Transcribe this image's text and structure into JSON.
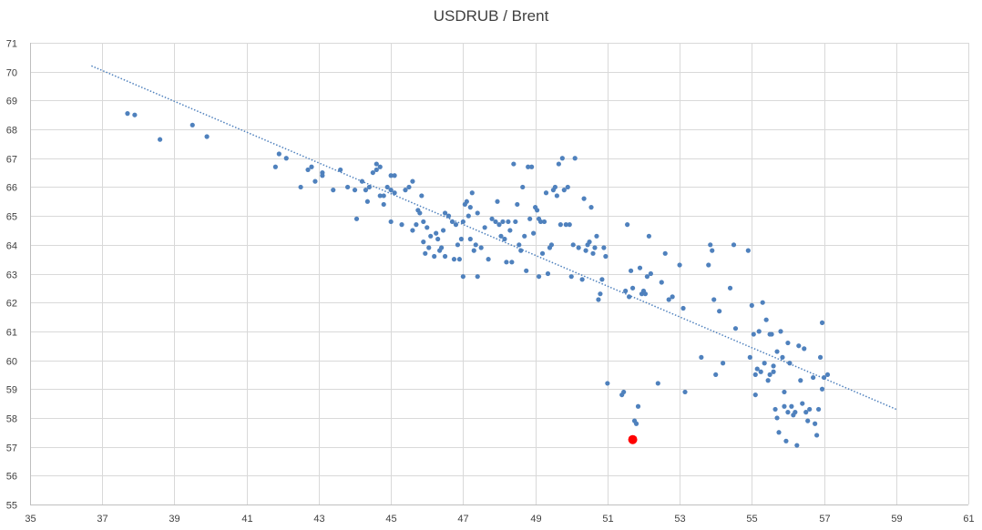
{
  "chart_data": {
    "type": "scatter",
    "title": "USDRUB / Brent",
    "xlabel": "",
    "ylabel": "",
    "xlim": [
      35,
      61
    ],
    "ylim": [
      55,
      71
    ],
    "x_ticks": [
      35,
      37,
      39,
      41,
      43,
      45,
      47,
      49,
      51,
      53,
      55,
      57,
      59,
      61
    ],
    "y_ticks": [
      55,
      56,
      57,
      58,
      59,
      60,
      61,
      62,
      63,
      64,
      65,
      66,
      67,
      68,
      69,
      70,
      71
    ],
    "grid": true,
    "colors": {
      "points": "#4f81bd",
      "highlight": "#ff0000",
      "trendline": "#4f81bd"
    },
    "trendline": {
      "style": "dotted",
      "x": [
        36.7,
        59.0
      ],
      "y": [
        70.2,
        58.3
      ]
    },
    "highlight_point": {
      "x": 51.7,
      "y": 57.25
    },
    "series": [
      {
        "points": [
          [
            37.7,
            68.55
          ],
          [
            37.9,
            68.5
          ],
          [
            38.6,
            67.65
          ],
          [
            39.5,
            68.15
          ],
          [
            39.9,
            67.75
          ],
          [
            41.8,
            66.7
          ],
          [
            41.9,
            67.15
          ],
          [
            42.1,
            67.0
          ],
          [
            42.5,
            66.0
          ],
          [
            42.7,
            66.6
          ],
          [
            42.8,
            66.7
          ],
          [
            42.9,
            66.2
          ],
          [
            43.1,
            66.5
          ],
          [
            43.1,
            66.4
          ],
          [
            43.4,
            65.9
          ],
          [
            43.6,
            66.6
          ],
          [
            43.8,
            66.0
          ],
          [
            44.0,
            65.9
          ],
          [
            44.05,
            64.9
          ],
          [
            44.2,
            66.2
          ],
          [
            44.3,
            65.9
          ],
          [
            44.35,
            65.5
          ],
          [
            44.4,
            66.0
          ],
          [
            44.5,
            66.5
          ],
          [
            44.6,
            66.8
          ],
          [
            44.6,
            66.6
          ],
          [
            44.7,
            66.7
          ],
          [
            44.7,
            65.7
          ],
          [
            44.8,
            65.7
          ],
          [
            44.8,
            65.4
          ],
          [
            44.9,
            66.0
          ],
          [
            45.0,
            65.9
          ],
          [
            45.0,
            66.4
          ],
          [
            45.1,
            66.4
          ],
          [
            45.1,
            65.8
          ],
          [
            45.0,
            64.8
          ],
          [
            45.3,
            64.7
          ],
          [
            45.4,
            65.9
          ],
          [
            45.5,
            66.0
          ],
          [
            45.6,
            66.2
          ],
          [
            45.6,
            64.5
          ],
          [
            45.7,
            64.7
          ],
          [
            45.75,
            65.2
          ],
          [
            45.8,
            65.1
          ],
          [
            45.85,
            65.7
          ],
          [
            45.9,
            64.8
          ],
          [
            45.9,
            64.1
          ],
          [
            45.95,
            63.7
          ],
          [
            46.0,
            64.6
          ],
          [
            46.05,
            63.9
          ],
          [
            46.1,
            64.3
          ],
          [
            46.2,
            63.6
          ],
          [
            46.25,
            64.4
          ],
          [
            46.3,
            64.2
          ],
          [
            46.35,
            63.8
          ],
          [
            46.4,
            63.9
          ],
          [
            46.45,
            64.5
          ],
          [
            46.5,
            63.6
          ],
          [
            46.5,
            65.1
          ],
          [
            46.6,
            65.0
          ],
          [
            46.7,
            64.8
          ],
          [
            46.75,
            63.5
          ],
          [
            46.8,
            64.7
          ],
          [
            46.85,
            64.0
          ],
          [
            46.9,
            63.5
          ],
          [
            46.95,
            64.2
          ],
          [
            47.0,
            64.8
          ],
          [
            47.0,
            62.9
          ],
          [
            47.05,
            65.4
          ],
          [
            47.1,
            65.5
          ],
          [
            47.15,
            65.0
          ],
          [
            47.2,
            65.3
          ],
          [
            47.2,
            64.2
          ],
          [
            47.25,
            65.8
          ],
          [
            47.3,
            63.8
          ],
          [
            47.35,
            64.0
          ],
          [
            47.4,
            65.1
          ],
          [
            47.4,
            62.9
          ],
          [
            47.5,
            63.9
          ],
          [
            47.6,
            64.6
          ],
          [
            47.7,
            63.5
          ],
          [
            47.8,
            64.9
          ],
          [
            47.9,
            64.8
          ],
          [
            47.95,
            65.5
          ],
          [
            48.0,
            64.7
          ],
          [
            48.05,
            64.3
          ],
          [
            48.1,
            64.8
          ],
          [
            48.15,
            64.2
          ],
          [
            48.2,
            63.4
          ],
          [
            48.25,
            64.8
          ],
          [
            48.3,
            64.5
          ],
          [
            48.35,
            63.4
          ],
          [
            48.4,
            66.8
          ],
          [
            48.45,
            64.8
          ],
          [
            48.5,
            65.4
          ],
          [
            48.55,
            64.0
          ],
          [
            48.6,
            63.8
          ],
          [
            48.65,
            66.0
          ],
          [
            48.7,
            64.3
          ],
          [
            48.75,
            63.1
          ],
          [
            48.8,
            66.7
          ],
          [
            48.85,
            64.9
          ],
          [
            48.9,
            66.7
          ],
          [
            48.95,
            64.4
          ],
          [
            49.0,
            65.3
          ],
          [
            49.05,
            65.2
          ],
          [
            49.1,
            64.9
          ],
          [
            49.15,
            64.8
          ],
          [
            49.2,
            63.7
          ],
          [
            49.25,
            64.8
          ],
          [
            49.3,
            65.8
          ],
          [
            49.35,
            63.0
          ],
          [
            49.4,
            63.9
          ],
          [
            49.45,
            64.0
          ],
          [
            49.1,
            62.9
          ],
          [
            49.5,
            65.9
          ],
          [
            49.55,
            66.0
          ],
          [
            49.6,
            65.7
          ],
          [
            49.65,
            66.8
          ],
          [
            49.7,
            64.7
          ],
          [
            49.75,
            67.0
          ],
          [
            49.8,
            65.9
          ],
          [
            49.85,
            64.7
          ],
          [
            49.9,
            66.0
          ],
          [
            49.95,
            64.7
          ],
          [
            50.0,
            62.9
          ],
          [
            50.05,
            64.0
          ],
          [
            50.1,
            67.0
          ],
          [
            50.2,
            63.9
          ],
          [
            50.3,
            62.8
          ],
          [
            50.35,
            65.6
          ],
          [
            50.4,
            63.8
          ],
          [
            50.45,
            64.0
          ],
          [
            50.5,
            64.1
          ],
          [
            50.55,
            65.3
          ],
          [
            50.6,
            63.7
          ],
          [
            50.65,
            63.9
          ],
          [
            50.7,
            64.3
          ],
          [
            50.75,
            62.1
          ],
          [
            50.8,
            62.3
          ],
          [
            50.85,
            62.8
          ],
          [
            50.9,
            63.9
          ],
          [
            50.95,
            63.6
          ],
          [
            51.0,
            59.2
          ],
          [
            51.4,
            58.8
          ],
          [
            51.45,
            58.9
          ],
          [
            51.5,
            62.4
          ],
          [
            51.55,
            64.7
          ],
          [
            51.6,
            62.2
          ],
          [
            51.65,
            63.1
          ],
          [
            51.7,
            62.5
          ],
          [
            51.75,
            57.9
          ],
          [
            51.8,
            57.8
          ],
          [
            51.85,
            58.4
          ],
          [
            51.9,
            63.2
          ],
          [
            51.95,
            62.3
          ],
          [
            52.0,
            62.4
          ],
          [
            52.05,
            62.3
          ],
          [
            52.1,
            62.9
          ],
          [
            52.15,
            64.3
          ],
          [
            52.2,
            63.0
          ],
          [
            52.4,
            59.2
          ],
          [
            52.5,
            62.7
          ],
          [
            52.6,
            63.7
          ],
          [
            52.7,
            62.1
          ],
          [
            52.8,
            62.2
          ],
          [
            53.0,
            63.3
          ],
          [
            53.1,
            61.8
          ],
          [
            53.15,
            58.9
          ],
          [
            53.6,
            60.1
          ],
          [
            53.8,
            63.3
          ],
          [
            53.85,
            64.0
          ],
          [
            53.9,
            63.8
          ],
          [
            53.95,
            62.1
          ],
          [
            54.0,
            59.5
          ],
          [
            54.1,
            61.7
          ],
          [
            54.2,
            59.9
          ],
          [
            54.4,
            62.5
          ],
          [
            54.5,
            64.0
          ],
          [
            54.55,
            61.1
          ],
          [
            54.9,
            63.8
          ],
          [
            54.95,
            60.1
          ],
          [
            55.0,
            61.9
          ],
          [
            55.05,
            60.9
          ],
          [
            55.1,
            59.5
          ],
          [
            55.1,
            58.8
          ],
          [
            55.15,
            59.7
          ],
          [
            55.2,
            61.0
          ],
          [
            55.25,
            59.6
          ],
          [
            55.3,
            62.0
          ],
          [
            55.35,
            59.9
          ],
          [
            55.4,
            61.4
          ],
          [
            55.45,
            59.3
          ],
          [
            55.5,
            59.5
          ],
          [
            55.55,
            60.9
          ],
          [
            55.6,
            59.8
          ],
          [
            55.65,
            58.3
          ],
          [
            55.7,
            58.0
          ],
          [
            55.75,
            57.5
          ],
          [
            55.8,
            61.0
          ],
          [
            55.85,
            60.1
          ],
          [
            55.9,
            58.9
          ],
          [
            55.95,
            57.2
          ],
          [
            56.0,
            60.6
          ],
          [
            56.05,
            59.9
          ],
          [
            56.1,
            58.4
          ],
          [
            56.15,
            58.1
          ],
          [
            56.2,
            58.2
          ],
          [
            56.25,
            57.05
          ],
          [
            56.3,
            60.5
          ],
          [
            56.35,
            59.3
          ],
          [
            56.4,
            58.5
          ],
          [
            56.45,
            60.4
          ],
          [
            56.5,
            58.2
          ],
          [
            56.55,
            57.9
          ],
          [
            56.6,
            58.3
          ],
          [
            56.7,
            59.4
          ],
          [
            56.75,
            57.8
          ],
          [
            56.8,
            57.4
          ],
          [
            56.85,
            58.3
          ],
          [
            56.9,
            60.1
          ],
          [
            56.95,
            61.3
          ],
          [
            56.95,
            59.0
          ],
          [
            57.0,
            59.4
          ],
          [
            57.1,
            59.5
          ],
          [
            55.5,
            60.9
          ],
          [
            55.9,
            58.4
          ],
          [
            56.0,
            58.2
          ],
          [
            55.6,
            59.6
          ],
          [
            55.7,
            60.3
          ]
        ]
      }
    ]
  }
}
